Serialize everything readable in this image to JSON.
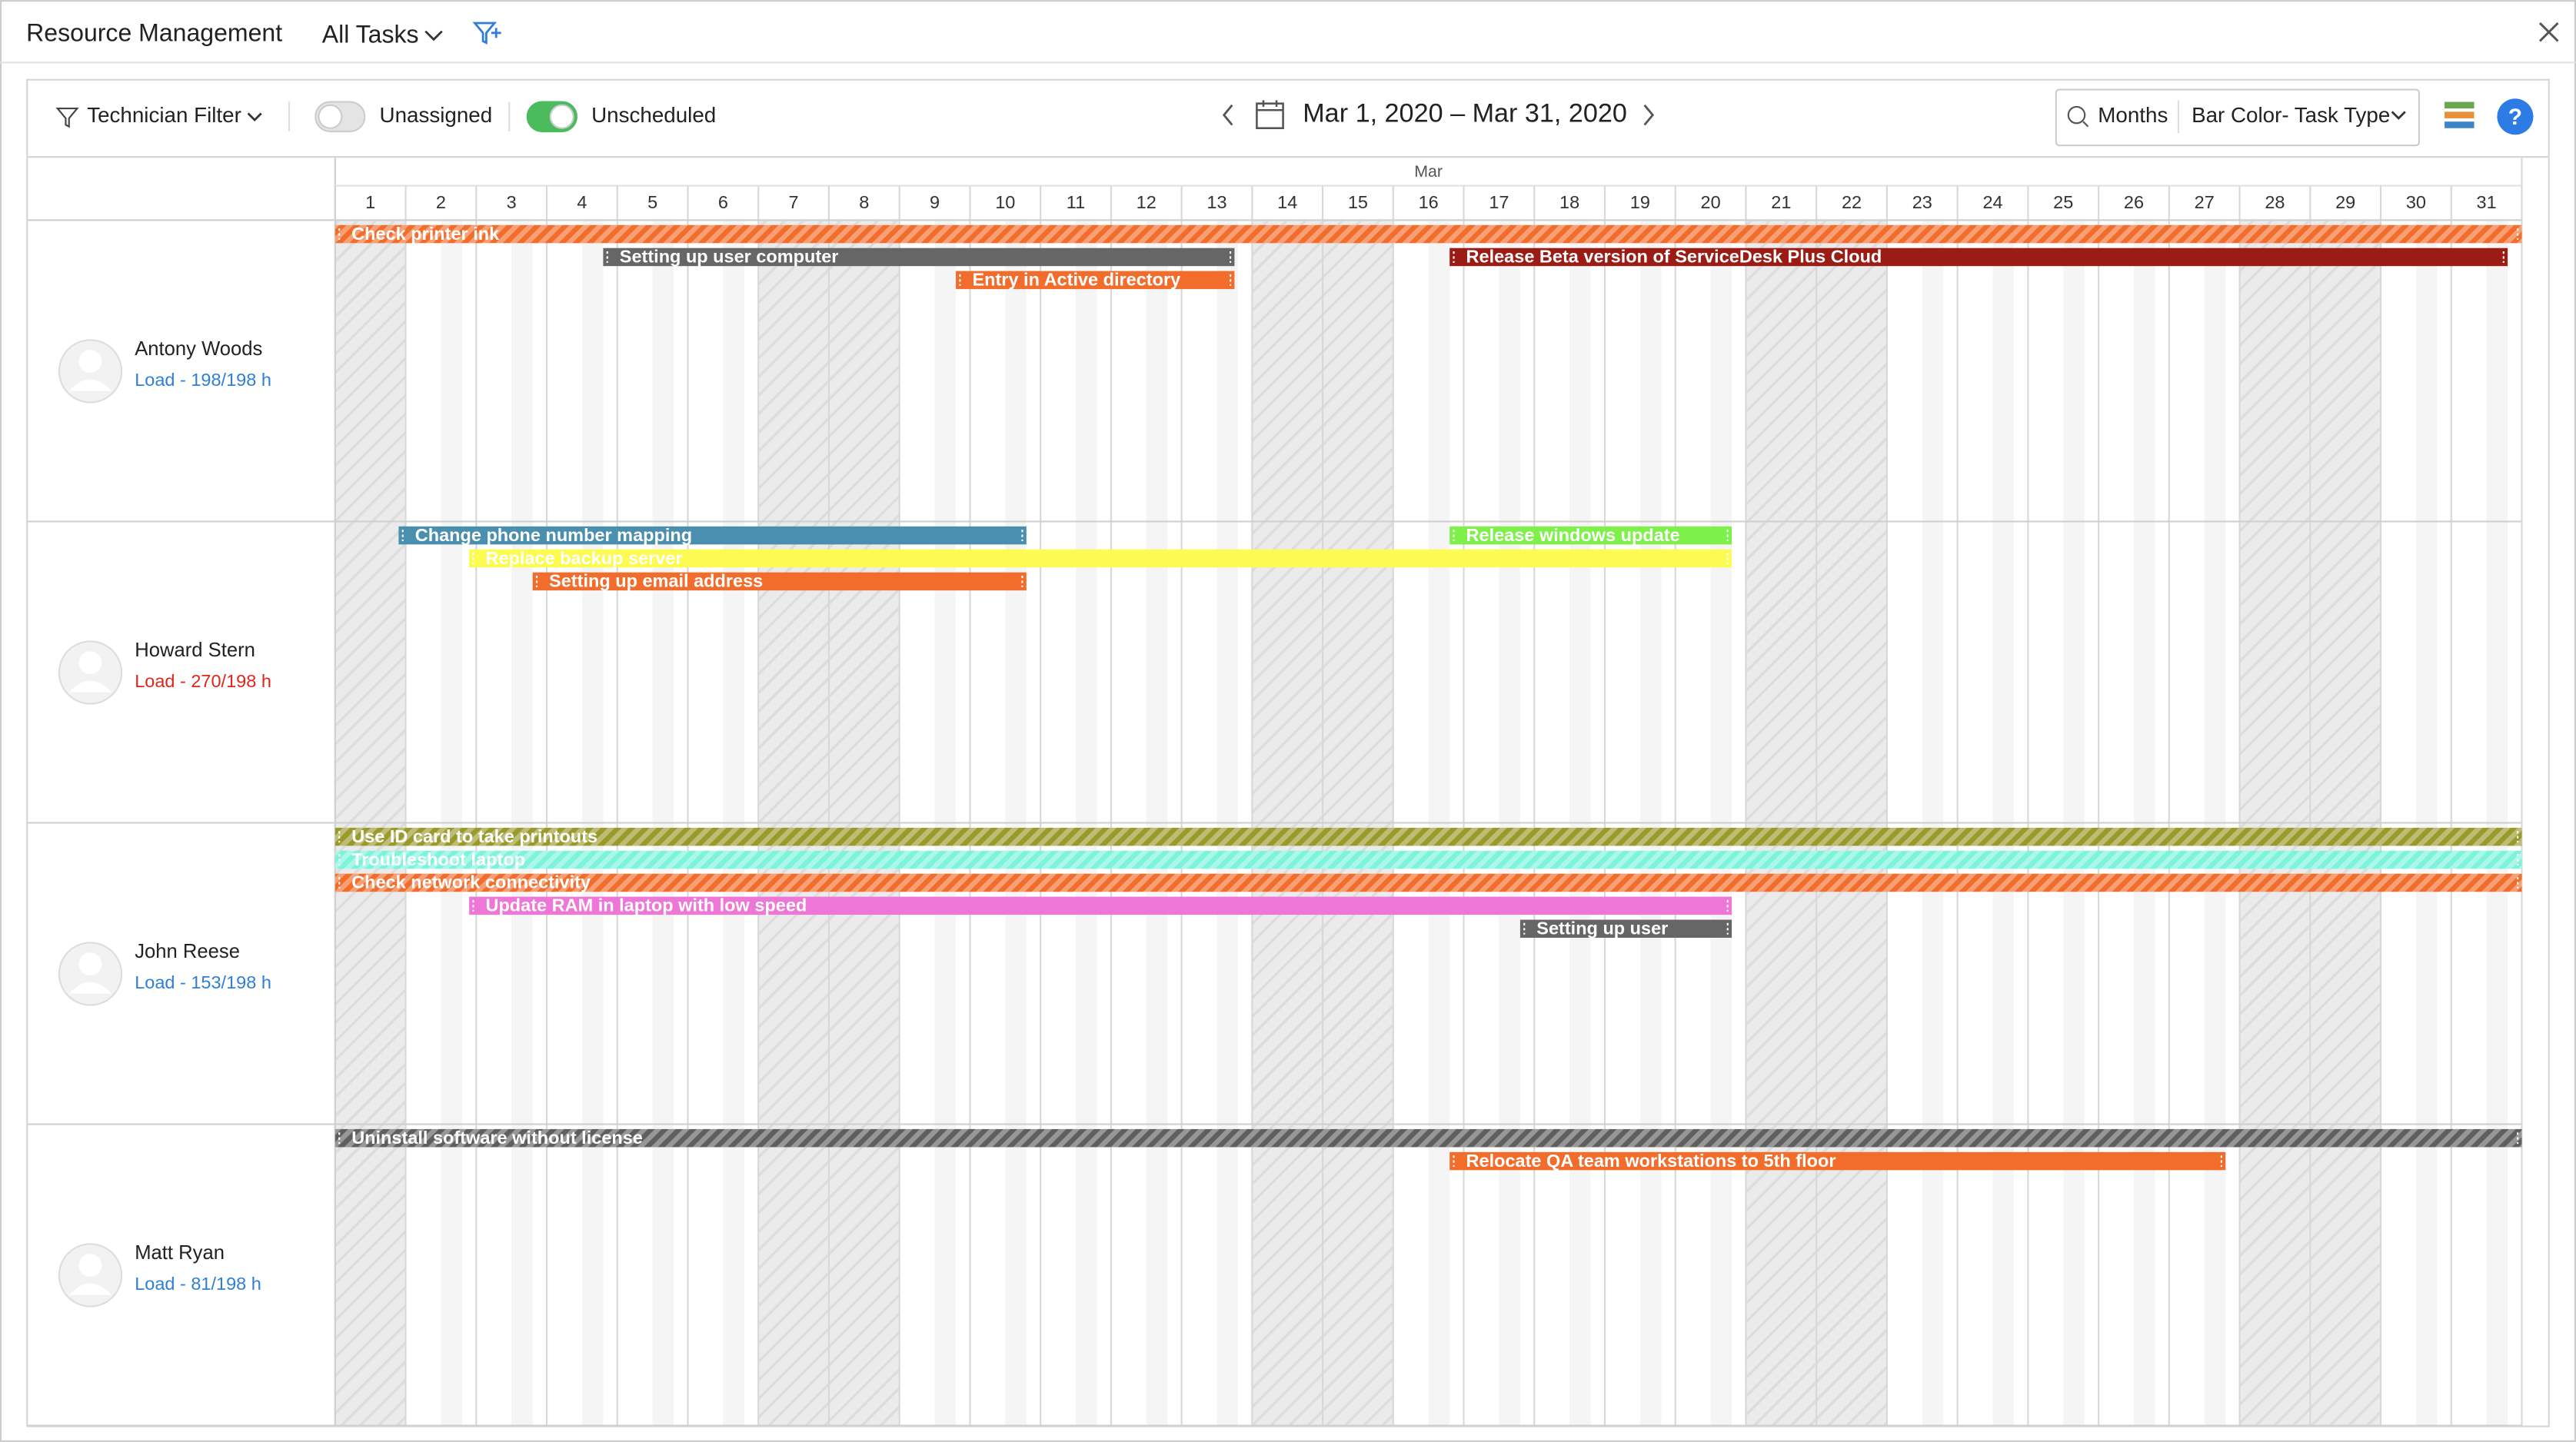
{
  "header": {
    "title": "Resource Management",
    "view": "All Tasks"
  },
  "toolbar": {
    "technician_filter": "Technician Filter",
    "unassigned": {
      "label": "Unassigned",
      "on": false
    },
    "unscheduled": {
      "label": "Unscheduled",
      "on": true
    },
    "date_range": "Mar 1, 2020 – Mar 31, 2020",
    "zoom": "Months",
    "bar_color": "Bar Color- Task Type"
  },
  "timeline": {
    "month": "Mar",
    "days": [
      1,
      2,
      3,
      4,
      5,
      6,
      7,
      8,
      9,
      10,
      11,
      12,
      13,
      14,
      15,
      16,
      17,
      18,
      19,
      20,
      21,
      22,
      23,
      24,
      25,
      26,
      27,
      28,
      29,
      30,
      31
    ]
  },
  "technicians": [
    {
      "name": "Antony Woods",
      "load": "Load - 198/198 h",
      "load_color": "#2f7fd6",
      "tasks": [
        {
          "title": "Check printer ink",
          "start": 1,
          "end": 32,
          "color": "#f26d2b",
          "striped": true
        },
        {
          "title": "Setting up user computer",
          "start": 4.8,
          "end": 13.75,
          "color": "#666666",
          "striped": false
        },
        {
          "title": "Release Beta version of ServiceDesk Plus Cloud",
          "start": 16.8,
          "end": 31.8,
          "color": "#9b1c14",
          "striped": false
        },
        {
          "title": "Entry in Active directory",
          "start": 9.8,
          "end": 13.75,
          "color": "#f26d2b",
          "striped": false
        }
      ]
    },
    {
      "name": "Howard Stern",
      "load": "Load - 270/198 h",
      "load_color": "#e0261b",
      "tasks": [
        {
          "title": "Change phone number mapping",
          "start": 1.9,
          "end": 10.8,
          "color": "#4a8fae",
          "striped": false
        },
        {
          "title": "Release windows update",
          "start": 16.8,
          "end": 20.8,
          "color": "#7ef04a",
          "striped": false
        },
        {
          "title": "Replace backup server",
          "start": 2.9,
          "end": 20.8,
          "color": "#fbfb52",
          "striped": false
        },
        {
          "title": "Setting up email address",
          "start": 3.8,
          "end": 10.8,
          "color": "#f26d2b",
          "striped": false
        }
      ]
    },
    {
      "name": "John Reese",
      "load": "Load - 153/198 h",
      "load_color": "#2f7fd6",
      "tasks": [
        {
          "title": "Use ID card to take printouts",
          "start": 1,
          "end": 32,
          "color": "#9a9a2c",
          "striped": true
        },
        {
          "title": "Troubleshoot laptop",
          "start": 1,
          "end": 32,
          "color": "#7ef3dc",
          "striped": true
        },
        {
          "title": "Check network connectivity",
          "start": 1,
          "end": 32,
          "color": "#f26d2b",
          "striped": true
        },
        {
          "title": "Update RAM in laptop with low speed",
          "start": 2.9,
          "end": 20.8,
          "color": "#ee76d6",
          "striped": false
        },
        {
          "title": "Setting up user",
          "start": 17.8,
          "end": 20.8,
          "color": "#666666",
          "striped": false
        }
      ]
    },
    {
      "name": "Matt Ryan",
      "load": "Load - 81/198 h",
      "load_color": "#2f7fd6",
      "tasks": [
        {
          "title": "Uninstall software without license",
          "start": 1,
          "end": 32,
          "color": "#5f5f5f",
          "striped": true
        },
        {
          "title": "Relocate QA team workstations to 5th floor",
          "start": 16.8,
          "end": 27.8,
          "color": "#f26d2b",
          "striped": false
        }
      ]
    }
  ]
}
